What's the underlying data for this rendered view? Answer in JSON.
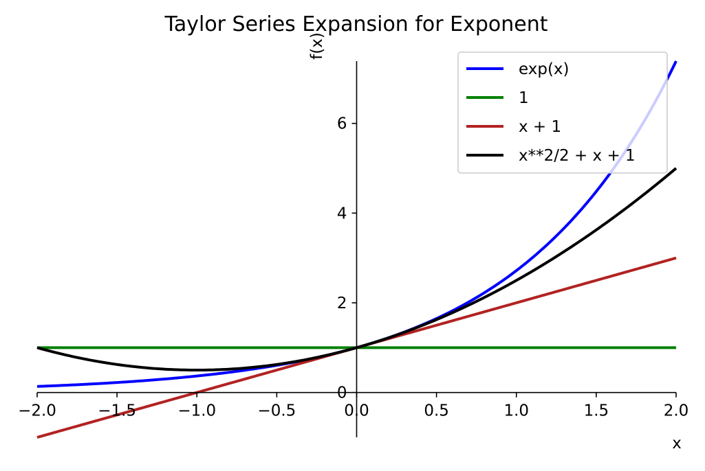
{
  "chart_data": {
    "type": "line",
    "title": "Taylor Series Expansion for Exponent",
    "xlabel": "x",
    "ylabel": "f(x)",
    "xlim": [
      -2.0,
      2.0
    ],
    "ylim": [
      -1.0,
      7.389
    ],
    "x_ticks": [
      -2.0,
      -1.5,
      -1.0,
      -0.5,
      0.0,
      0.5,
      1.0,
      1.5,
      2.0
    ],
    "x_tick_labels": [
      "−2.0",
      "−1.5",
      "−1.0",
      "−0.5",
      "0.0",
      "0.5",
      "1.0",
      "1.5",
      "2.0"
    ],
    "y_ticks": [
      0,
      2,
      4,
      6
    ],
    "y_tick_labels": [
      "0",
      "2",
      "4",
      "6"
    ],
    "grid": false,
    "legend_position": "top-right",
    "x": [
      -2.0,
      -1.75,
      -1.5,
      -1.25,
      -1.0,
      -0.75,
      -0.5,
      -0.25,
      0.0,
      0.25,
      0.5,
      0.75,
      1.0,
      1.25,
      1.5,
      1.75,
      2.0
    ],
    "series": [
      {
        "name": "exp(x)",
        "color": "#0000ff",
        "values": [
          0.135,
          0.174,
          0.223,
          0.287,
          0.368,
          0.472,
          0.607,
          0.779,
          1.0,
          1.284,
          1.649,
          2.117,
          2.718,
          3.49,
          4.482,
          5.755,
          7.389
        ]
      },
      {
        "name": "1",
        "color": "#008000",
        "values": [
          1,
          1,
          1,
          1,
          1,
          1,
          1,
          1,
          1,
          1,
          1,
          1,
          1,
          1,
          1,
          1,
          1
        ]
      },
      {
        "name": "x + 1",
        "color": "#b22222",
        "values": [
          -1.0,
          -0.75,
          -0.5,
          -0.25,
          0.0,
          0.25,
          0.5,
          0.75,
          1.0,
          1.25,
          1.5,
          1.75,
          2.0,
          2.25,
          2.5,
          2.75,
          3.0
        ]
      },
      {
        "name": "x**2/2 + x + 1",
        "color": "#000000",
        "values": [
          1.0,
          0.781,
          0.625,
          0.531,
          0.5,
          0.531,
          0.625,
          0.781,
          1.0,
          1.281,
          1.625,
          2.031,
          2.5,
          3.031,
          3.625,
          4.281,
          5.0
        ]
      }
    ]
  }
}
